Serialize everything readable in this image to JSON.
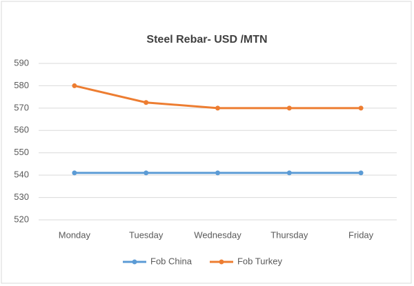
{
  "chart_data": {
    "type": "line",
    "title": "Steel Rebar- USD /MTN",
    "categories": [
      "Monday",
      "Tuesday",
      "Wednesday",
      "Thursday",
      "Friday"
    ],
    "series": [
      {
        "name": "Fob China",
        "color": "#5b9bd5",
        "values": [
          541,
          541,
          541,
          541,
          541
        ]
      },
      {
        "name": "Fob Turkey",
        "color": "#ed7d31",
        "values": [
          580,
          572.5,
          570,
          570,
          570
        ]
      }
    ],
    "ylim": [
      520,
      590
    ],
    "yticks": [
      520,
      530,
      540,
      550,
      560,
      570,
      580,
      590
    ],
    "grid": true,
    "legend": "bottom"
  }
}
